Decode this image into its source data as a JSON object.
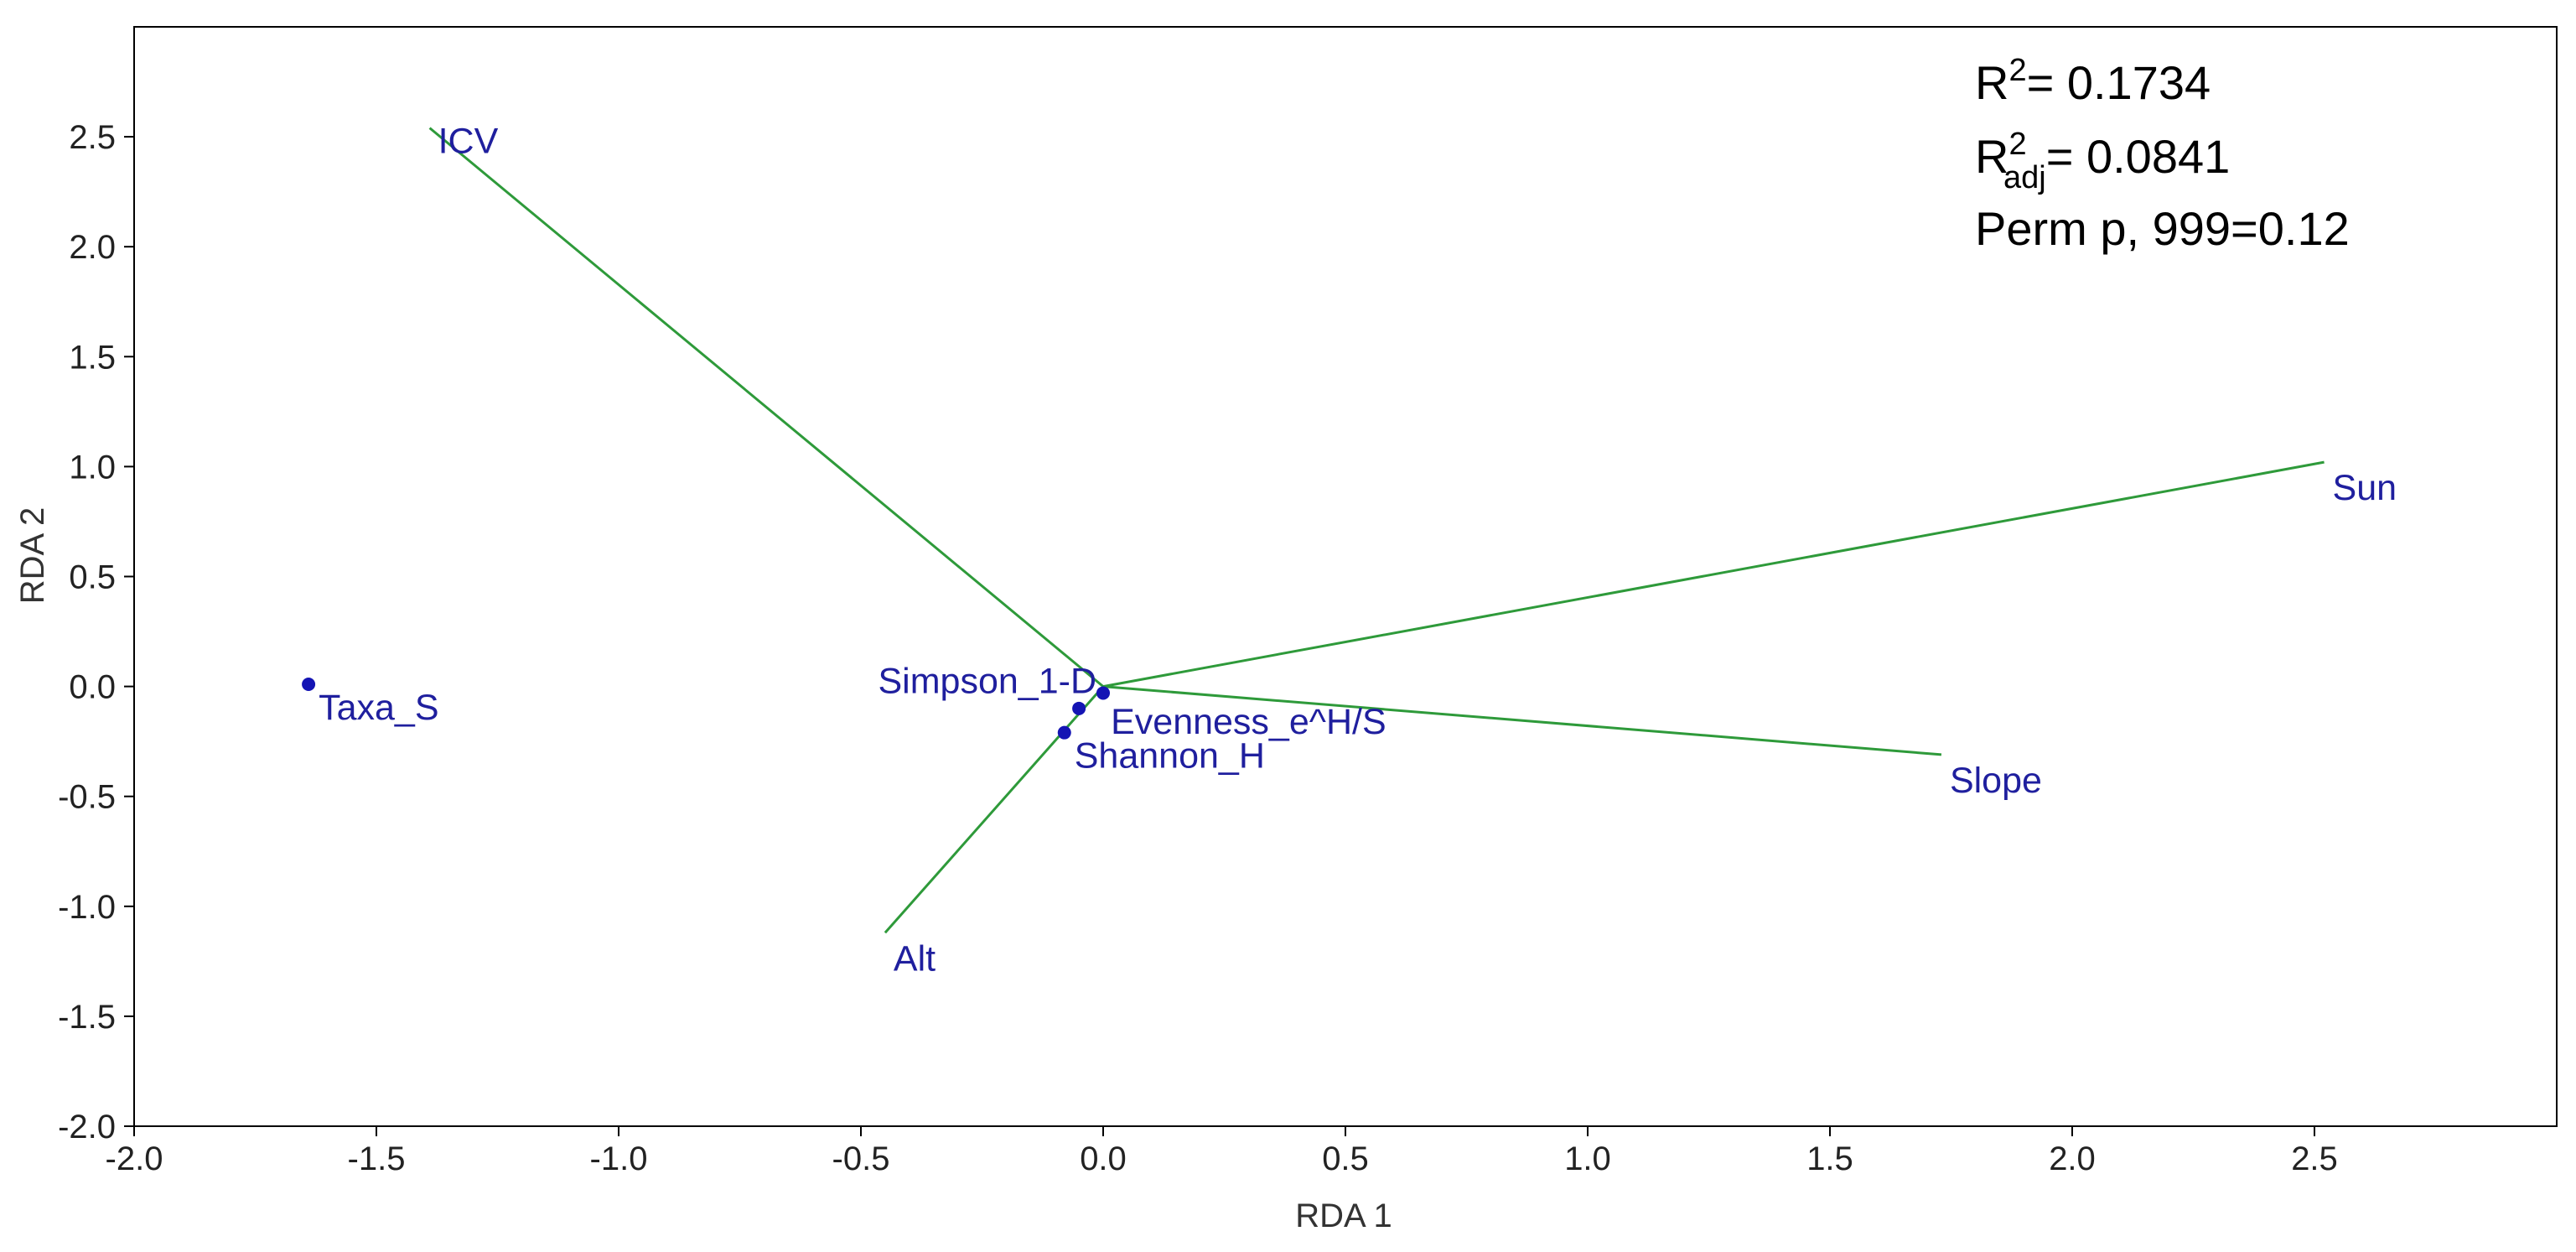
{
  "chart_data": {
    "type": "scatter",
    "title": "",
    "xlabel": "RDA 1",
    "ylabel": "RDA 2",
    "xlim": [
      -2.0,
      3.0
    ],
    "ylim": [
      -2.0,
      3.0
    ],
    "x_ticks": [
      "-2.0",
      "-1.5",
      "-1.0",
      "-0.5",
      "0.0",
      "0.5",
      "1.0",
      "1.5",
      "2.0",
      "2.5"
    ],
    "y_ticks": [
      "-2.0",
      "-1.5",
      "-1.0",
      "-0.5",
      "0.0",
      "0.5",
      "1.0",
      "1.5",
      "2.0",
      "2.5"
    ],
    "grid": false,
    "vector_color": "#2e9a3a",
    "point_color": "#1414b4",
    "label_color": "#1f1f9e",
    "points": [
      {
        "label": "Taxa_S",
        "x": -1.64,
        "y": 0.01
      },
      {
        "label": "Simpson_1-D",
        "x": 0.0,
        "y": -0.03
      },
      {
        "label": "Evenness_e^H/S",
        "x": -0.05,
        "y": -0.1
      },
      {
        "label": "Shannon_H",
        "x": -0.08,
        "y": -0.21
      }
    ],
    "vectors": [
      {
        "label": "ICV",
        "x": -1.39,
        "y": 2.54
      },
      {
        "label": "Sun",
        "x": 2.52,
        "y": 1.02
      },
      {
        "label": "Slope",
        "x": 1.73,
        "y": -0.31
      },
      {
        "label": "Alt",
        "x": -0.45,
        "y": -1.12
      }
    ],
    "stats": {
      "r2_label": "R",
      "r2_sup": "2",
      "r2_value": "= 0.1734",
      "r2adj_label": "R",
      "r2adj_sup": "2",
      "r2adj_sub": "adj",
      "r2adj_value": "= 0.0841",
      "perm": "Perm p, 999=0.12"
    }
  }
}
